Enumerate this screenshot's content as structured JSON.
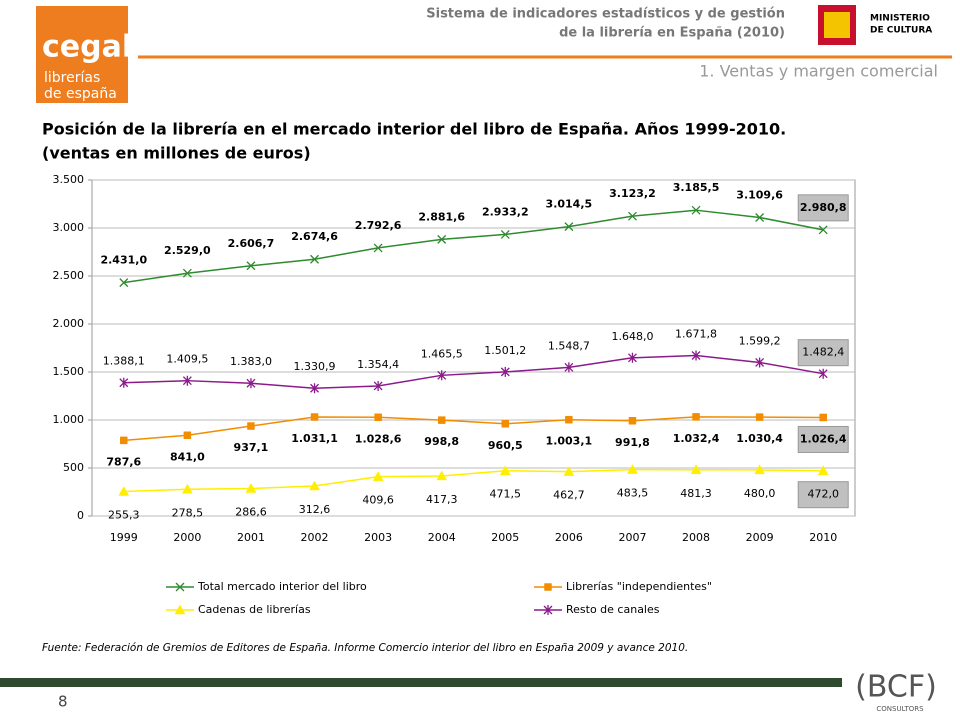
{
  "header": {
    "subtitle_lines": [
      "Sistema de indicadores estadísticos y de gestión",
      "de la librería en España (2010)"
    ],
    "ministry": [
      "MINISTERIO",
      "DE CULTURA"
    ],
    "section": "1. Ventas y margen comercial",
    "logo": [
      "cegal",
      "librerías",
      "de españa"
    ]
  },
  "chart_data": {
    "type": "line",
    "title_lines": [
      "Posición de la librería en el mercado interior del libro de España. Años 1999-2010.",
      "(ventas en millones de euros)"
    ],
    "categories": [
      "1999",
      "2000",
      "2001",
      "2002",
      "2003",
      "2004",
      "2005",
      "2006",
      "2007",
      "2008",
      "2009",
      "2010"
    ],
    "ylim": [
      0,
      3500
    ],
    "yticks": [
      0,
      500,
      {
        "value": 1000,
        "label": "1.000"
      },
      {
        "value": 1500,
        "label": "1.500"
      },
      {
        "value": 2000,
        "label": "2.000"
      },
      {
        "value": 2500,
        "label": "2.500"
      },
      {
        "value": 3000,
        "label": "3.000"
      },
      {
        "value": 3500,
        "label": "3.500"
      }
    ],
    "grid": true,
    "series": [
      {
        "name": "Total mercado interior del libro",
        "color": "#2e8b2e",
        "marker": "x",
        "values": [
          2431.0,
          2529.0,
          2606.7,
          2674.6,
          2792.6,
          2881.6,
          2933.2,
          3014.5,
          3123.2,
          3185.5,
          3109.6,
          2980.8
        ],
        "value_labels": [
          "2.431,0",
          "2.529,0",
          "2.606,7",
          "2.674,6",
          "2.792,6",
          "2.881,6",
          "2.933,2",
          "3.014,5",
          "3.123,2",
          "3.185,5",
          "3.109,6",
          "2.980,8"
        ]
      },
      {
        "name": "Librerías \"independientes\"",
        "color": "#f28c00",
        "marker": "square",
        "values": [
          787.6,
          841.0,
          937.1,
          1031.1,
          1028.6,
          998.8,
          960.5,
          1003.1,
          991.8,
          1032.4,
          1030.4,
          1026.4
        ],
        "value_labels": [
          "787,6",
          "841,0",
          "937,1",
          "1.031,1",
          "1.028,6",
          "998,8",
          "960,5",
          "1.003,1",
          "991,8",
          "1.032,4",
          "1.030,4",
          "1.026,4"
        ]
      },
      {
        "name": "Cadenas de librerías",
        "color": "#ffee00",
        "marker": "triangle",
        "values": [
          255.3,
          278.5,
          286.6,
          312.6,
          409.6,
          417.3,
          471.5,
          462.7,
          483.5,
          481.3,
          480.0,
          472.0
        ],
        "value_labels": [
          "255,3",
          "278,5",
          "286,6",
          "312,6",
          "409,6",
          "417,3",
          "471,5",
          "462,7",
          "483,5",
          "481,3",
          "480,0",
          "472,0"
        ]
      },
      {
        "name": "Resto de canales",
        "color": "#8b1a8b",
        "marker": "star",
        "values": [
          1388.1,
          1409.5,
          1383.0,
          1330.9,
          1354.4,
          1465.5,
          1501.2,
          1548.7,
          1648.0,
          1671.8,
          1599.2,
          1482.4
        ],
        "value_labels": [
          "1.388,1",
          "1.409,5",
          "1.383,0",
          "1.330,9",
          "1.354,4",
          "1.465,5",
          "1.501,2",
          "1.548,7",
          "1.648,0",
          "1.671,8",
          "1.599,2",
          "1.482,4"
        ]
      }
    ],
    "source": "Fuente: Federación de Gremios de Editores de España. Informe Comercio interior del libro en España 2009 y avance 2010."
  },
  "footer": {
    "page": "8",
    "brand": "(BCF)",
    "brand_sub": "CONSULTORS"
  }
}
